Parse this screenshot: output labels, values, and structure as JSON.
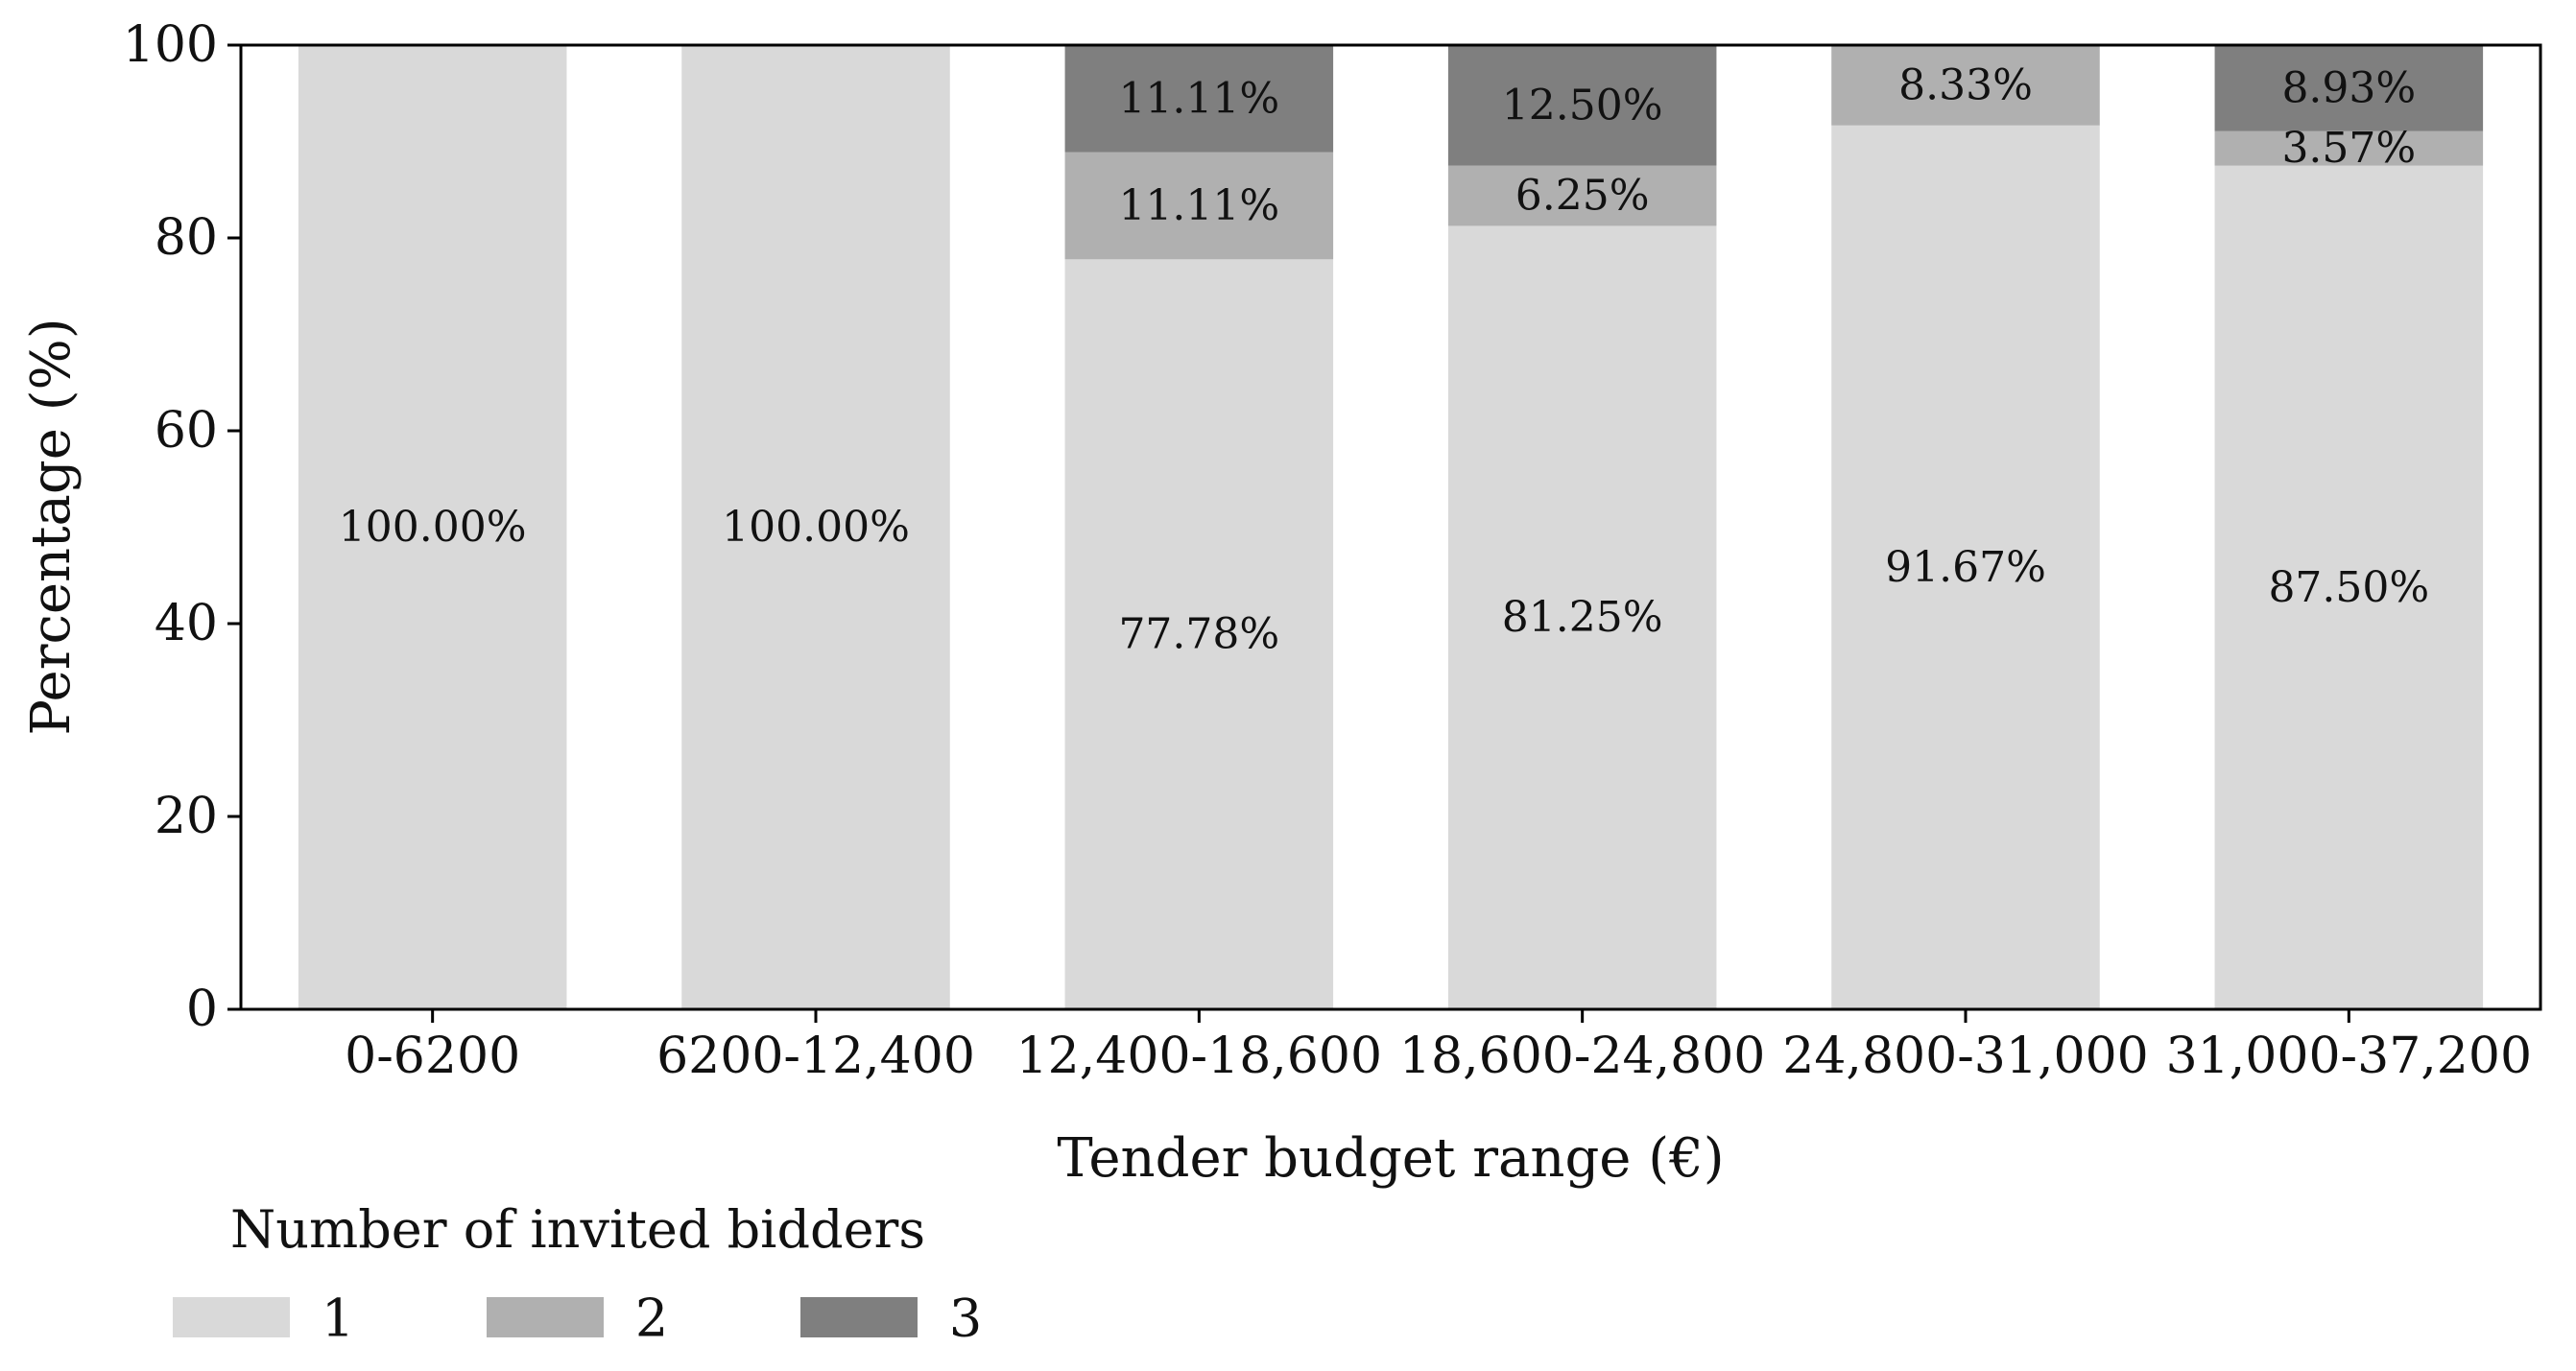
{
  "chart_data": {
    "type": "bar",
    "stacked": true,
    "categories": [
      "0-6200",
      "6200-12,400",
      "12,400-18,600",
      "18,600-24,800",
      "24,800-31,000",
      "31,000-37,200"
    ],
    "series": [
      {
        "name": "1",
        "values": [
          100.0,
          100.0,
          77.78,
          81.25,
          91.67,
          87.5
        ],
        "labels": [
          "100.00%",
          "100.00%",
          "77.78%",
          "81.25%",
          "91.67%",
          "87.50%"
        ],
        "color": "#d9d9d9"
      },
      {
        "name": "2",
        "values": [
          0,
          0,
          11.11,
          6.25,
          8.33,
          3.57
        ],
        "labels": [
          "",
          "",
          "11.11%",
          "6.25%",
          "8.33%",
          "3.57%"
        ],
        "color": "#b0b0b0"
      },
      {
        "name": "3",
        "values": [
          0,
          0,
          11.11,
          12.5,
          0,
          8.93
        ],
        "labels": [
          "",
          "",
          "11.11%",
          "12.50%",
          "",
          "8.93%"
        ],
        "color": "#7f7f7f"
      }
    ],
    "xlabel": "Tender budget range (€)",
    "ylabel": "Percentage (%)",
    "ylim": [
      0,
      100
    ],
    "yticks": [
      "0",
      "20",
      "40",
      "60",
      "80",
      "100"
    ],
    "grid": false,
    "legend": {
      "title": "Number of invited bidders",
      "position": "bottom-left"
    }
  }
}
